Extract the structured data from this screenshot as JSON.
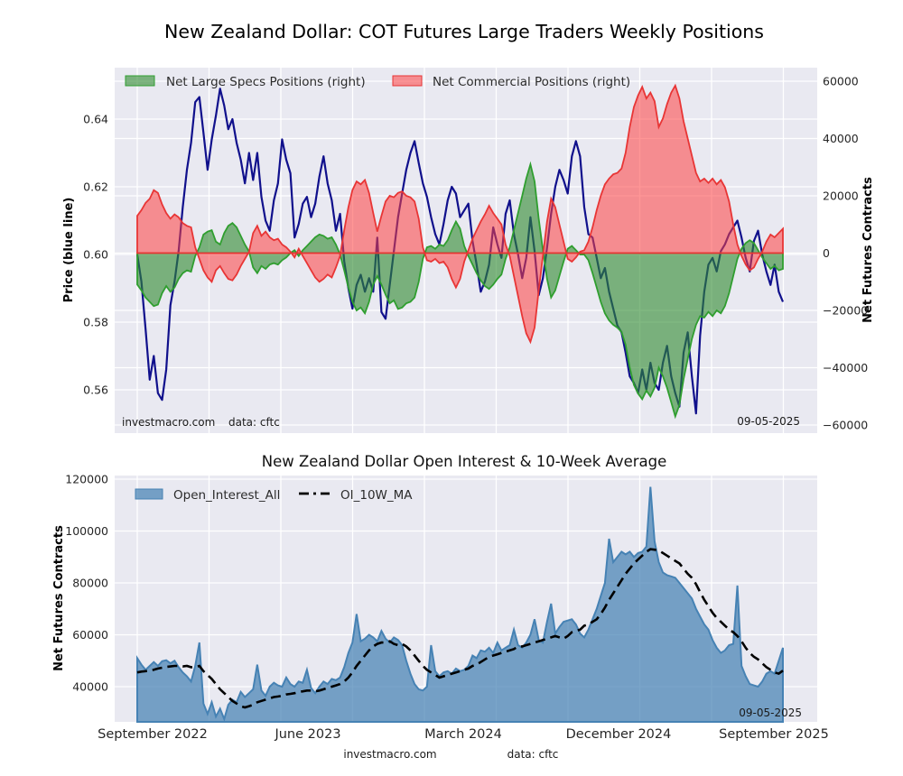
{
  "figure": {
    "title": "New Zealand Dollar: COT Futures Large Traders Weekly Positions",
    "watermark": "investmacro.com",
    "source_note": "data: cftc",
    "date_note": "09-05-2025"
  },
  "colors": {
    "panel_bg": "#e9e9f1",
    "grid": "#ffffff",
    "price_line": "#10108c",
    "specs_fill": "rgba(46,139,46,0.6)",
    "specs_edge": "#2f9e2f",
    "commercial_fill": "rgba(255,64,64,0.55)",
    "commercial_edge": "#e83535",
    "oi_fill": "rgba(70,130,180,0.72)",
    "oi_edge": "#4682b4",
    "ma_line": "#000000"
  },
  "chart_data": [
    {
      "type": "area",
      "title": "New Zealand Dollar: COT Futures Large Traders Weekly Positions",
      "legend": [
        "Net Large Specs Positions (right)",
        "Net Commercial Positions (right)"
      ],
      "ylabel_left": "Price (blue line)",
      "ylabel_right": "Net Futures Contracts",
      "yticks_left": [
        0.64,
        0.62,
        0.6,
        0.58,
        0.56
      ],
      "yticks_right": [
        60000,
        40000,
        20000,
        0,
        -20000,
        -40000,
        -60000
      ],
      "ylim_left": [
        0.546,
        0.655
      ],
      "ylim_right": [
        -63000,
        64500
      ],
      "x_range": [
        "mid-August 2022",
        "September 2025"
      ],
      "grid": true,
      "legend_position": "upper-left-inside",
      "annotations": [
        "investmacro.com",
        "data: cftc",
        "09-05-2025"
      ],
      "series": [
        {
          "name": "Price",
          "axis": "left",
          "style": "line",
          "values": [
            0.6,
            0.592,
            0.578,
            0.563,
            0.57,
            0.559,
            0.557,
            0.566,
            0.585,
            0.592,
            0.601,
            0.614,
            0.625,
            0.633,
            0.645,
            0.6465,
            0.636,
            0.625,
            0.634,
            0.641,
            0.649,
            0.644,
            0.637,
            0.64,
            0.633,
            0.628,
            0.621,
            0.63,
            0.622,
            0.63,
            0.617,
            0.61,
            0.607,
            0.616,
            0.621,
            0.634,
            0.628,
            0.624,
            0.605,
            0.609,
            0.615,
            0.617,
            0.611,
            0.615,
            0.623,
            0.629,
            0.621,
            0.616,
            0.607,
            0.612,
            0.598,
            0.59,
            0.584,
            0.591,
            0.594,
            0.589,
            0.593,
            0.589,
            0.605,
            0.583,
            0.581,
            0.591,
            0.601,
            0.611,
            0.618,
            0.625,
            0.63,
            0.6335,
            0.627,
            0.621,
            0.617,
            0.611,
            0.606,
            0.603,
            0.609,
            0.616,
            0.62,
            0.618,
            0.611,
            0.613,
            0.615,
            0.604,
            0.597,
            0.589,
            0.592,
            0.597,
            0.608,
            0.603,
            0.599,
            0.612,
            0.616,
            0.606,
            0.6,
            0.593,
            0.599,
            0.611,
            0.601,
            0.588,
            0.593,
            0.602,
            0.612,
            0.62,
            0.625,
            0.622,
            0.618,
            0.629,
            0.6335,
            0.629,
            0.614,
            0.606,
            0.605,
            0.599,
            0.593,
            0.596,
            0.589,
            0.584,
            0.579,
            0.577,
            0.571,
            0.564,
            0.562,
            0.559,
            0.566,
            0.56,
            0.568,
            0.562,
            0.56,
            0.568,
            0.573,
            0.564,
            0.559,
            0.555,
            0.571,
            0.577,
            0.564,
            0.553,
            0.576,
            0.589,
            0.597,
            0.599,
            0.595,
            0.601,
            0.603,
            0.606,
            0.608,
            0.61,
            0.605,
            0.599,
            0.595,
            0.604,
            0.607,
            0.6,
            0.595,
            0.591,
            0.597,
            0.589,
            0.586
          ]
        },
        {
          "name": "Net Large Specs Positions",
          "axis": "right",
          "style": "area",
          "values": [
            -11000,
            -13000,
            -15500,
            -17000,
            -18500,
            -18000,
            -14000,
            -11500,
            -13500,
            -12000,
            -9000,
            -7000,
            -6000,
            -6500,
            -1000,
            2000,
            6500,
            7500,
            8000,
            4000,
            3000,
            7000,
            9500,
            10500,
            9000,
            6000,
            3000,
            500,
            -5000,
            -7000,
            -4500,
            -5500,
            -4000,
            -3500,
            -4000,
            -2500,
            -1500,
            0,
            1000,
            -1000,
            1000,
            2500,
            4000,
            5500,
            6500,
            6000,
            5000,
            5500,
            3000,
            -500,
            -6000,
            -12000,
            -17000,
            -20000,
            -19000,
            -21000,
            -17000,
            -11000,
            -8000,
            -11000,
            -14500,
            -17500,
            -16500,
            -19500,
            -19000,
            -17500,
            -17000,
            -15500,
            -10000,
            -2000,
            2000,
            2500,
            1500,
            3000,
            2500,
            4500,
            8000,
            11000,
            8500,
            2500,
            -1000,
            -4000,
            -7000,
            -9500,
            -11500,
            -12500,
            -11000,
            -9000,
            -7500,
            -2000,
            2000,
            8000,
            14000,
            20000,
            26000,
            31000,
            25000,
            12000,
            1000,
            -9000,
            -15500,
            -13000,
            -8000,
            -3000,
            1500,
            2500,
            1000,
            -500,
            -500,
            -2500,
            -7000,
            -12000,
            -17000,
            -21000,
            -23500,
            -25000,
            -26000,
            -27500,
            -32000,
            -40000,
            -46000,
            -49000,
            -51000,
            -48000,
            -50000,
            -47000,
            -40000,
            -43000,
            -47000,
            -52000,
            -57000,
            -53000,
            -44000,
            -37000,
            -30000,
            -25000,
            -22000,
            -22500,
            -20500,
            -22000,
            -20000,
            -21000,
            -18500,
            -14000,
            -8000,
            -2000,
            1500,
            3500,
            4500,
            3500,
            1000,
            -1500,
            -3500,
            -5500,
            -4500,
            -6000,
            -5500
          ]
        },
        {
          "name": "Net Commercial Positions",
          "axis": "right",
          "style": "area",
          "values": [
            13000,
            15000,
            17500,
            19000,
            22000,
            21000,
            17000,
            14000,
            12000,
            13500,
            12500,
            10500,
            9500,
            9000,
            2000,
            -2000,
            -6000,
            -8500,
            -10000,
            -6000,
            -4500,
            -7000,
            -9000,
            -9500,
            -7500,
            -4500,
            -2000,
            500,
            7000,
            9500,
            6000,
            7500,
            5500,
            4500,
            5000,
            3000,
            2000,
            500,
            -1500,
            1500,
            -1000,
            -3500,
            -6000,
            -8500,
            -10000,
            -9000,
            -7500,
            -8500,
            -5000,
            -1000,
            8000,
            16000,
            22000,
            25000,
            24000,
            25500,
            21000,
            14000,
            7500,
            13000,
            18000,
            20000,
            19500,
            21000,
            21500,
            20000,
            19500,
            18000,
            12000,
            2000,
            -2500,
            -3000,
            -2000,
            -3500,
            -3000,
            -5000,
            -9000,
            -12000,
            -9000,
            -3000,
            1000,
            5000,
            8000,
            11000,
            13500,
            16500,
            14000,
            12000,
            10000,
            3000,
            -1000,
            -8000,
            -15000,
            -22000,
            -28000,
            -31000,
            -26000,
            -13000,
            -1000,
            11000,
            19000,
            16000,
            10000,
            4000,
            -2000,
            -3000,
            -1500,
            500,
            1000,
            4000,
            9000,
            15000,
            20000,
            24000,
            26000,
            27500,
            28000,
            29500,
            35000,
            44000,
            51000,
            55000,
            58000,
            54000,
            56000,
            53000,
            44000,
            47000,
            52000,
            56000,
            58500,
            54000,
            46000,
            40000,
            34000,
            28000,
            25000,
            26000,
            24500,
            26000,
            24000,
            25500,
            23000,
            18000,
            10000,
            3000,
            -1000,
            -4000,
            -6000,
            -5000,
            -2000,
            500,
            4000,
            6500,
            5500,
            7000,
            8500
          ]
        }
      ]
    },
    {
      "type": "area",
      "title": "New Zealand Dollar Open Interest & 10-Week Average",
      "legend": [
        "Open_Interest_All",
        "OI_10W_MA"
      ],
      "ylabel": "Net Futures Contracts",
      "yticks": [
        120000,
        100000,
        80000,
        60000,
        40000
      ],
      "ylim": [
        26000,
        122000
      ],
      "xticklabels": [
        "September 2022",
        "June 2023",
        "March 2024",
        "December 2024",
        "September 2025"
      ],
      "grid": true,
      "legend_position": "upper-left-inside",
      "annotations": [
        "09-05-2025",
        "investmacro.com",
        "data: cftc"
      ],
      "series": [
        {
          "name": "Open_Interest_All",
          "style": "area",
          "values": [
            51000,
            48500,
            46500,
            48000,
            49500,
            48000,
            49800,
            50200,
            49000,
            50000,
            47500,
            45500,
            44000,
            42000,
            48000,
            57000,
            33500,
            29500,
            34000,
            28500,
            31500,
            27500,
            33000,
            35000,
            34000,
            38000,
            36000,
            37500,
            39000,
            48500,
            38500,
            36500,
            40000,
            41500,
            40500,
            40000,
            43500,
            41000,
            40000,
            42000,
            41500,
            46500,
            39500,
            37500,
            40000,
            42000,
            41000,
            43000,
            42500,
            43500,
            47500,
            53000,
            57000,
            68000,
            57500,
            58500,
            60000,
            59000,
            57500,
            61500,
            58500,
            57000,
            59000,
            58000,
            56000,
            50000,
            45000,
            41000,
            39000,
            38500,
            40000,
            56000,
            46000,
            44000,
            45500,
            46000,
            45000,
            47000,
            46000,
            46500,
            48000,
            52000,
            51000,
            54000,
            53500,
            55000,
            53000,
            57000,
            54000,
            55000,
            56000,
            62000,
            56000,
            55000,
            57000,
            60000,
            66000,
            58000,
            57000,
            65000,
            72000,
            60500,
            63000,
            65000,
            65500,
            66000,
            64000,
            60500,
            59000,
            62000,
            66000,
            70000,
            75000,
            80000,
            97000,
            88000,
            90000,
            92000,
            91000,
            92000,
            90000,
            91500,
            92000,
            94000,
            117000,
            96000,
            88000,
            84000,
            83000,
            82500,
            82000,
            80000,
            78000,
            76000,
            74000,
            70000,
            67000,
            64000,
            62000,
            58000,
            55000,
            53000,
            54000,
            56000,
            56500,
            79000,
            48000,
            44000,
            41000,
            40500,
            40000,
            42000,
            45000,
            46000,
            45000,
            50000,
            55000
          ]
        },
        {
          "name": "OI_10W_MA",
          "style": "dashed-line",
          "values": [
            45500,
            45800,
            46000,
            46200,
            46500,
            47000,
            47300,
            47600,
            47800,
            48000,
            48000,
            47800,
            48000,
            47500,
            47500,
            48000,
            46000,
            44500,
            43000,
            41000,
            39000,
            37500,
            36000,
            34500,
            33500,
            32500,
            32000,
            32500,
            33000,
            34000,
            34500,
            35000,
            35500,
            36000,
            36200,
            36500,
            37000,
            37200,
            37500,
            38000,
            38200,
            38500,
            38500,
            38200,
            38500,
            39000,
            39500,
            40000,
            40500,
            41000,
            42000,
            43500,
            45500,
            48000,
            50000,
            52000,
            54000,
            55500,
            56500,
            57000,
            57000,
            57500,
            56500,
            56000,
            56500,
            55500,
            54000,
            52000,
            50000,
            48000,
            46500,
            45500,
            44500,
            43500,
            44000,
            44500,
            45000,
            45500,
            46000,
            46500,
            47000,
            48000,
            48500,
            49500,
            50500,
            51500,
            52000,
            52500,
            53000,
            53500,
            54000,
            54500,
            55500,
            55500,
            56000,
            56500,
            57000,
            57500,
            58000,
            58500,
            59000,
            59500,
            59000,
            58500,
            59500,
            61000,
            61500,
            62000,
            63500,
            64000,
            65000,
            66000,
            68000,
            70500,
            73500,
            76000,
            78500,
            81000,
            83500,
            85500,
            87500,
            89000,
            90500,
            92000,
            93000,
            92800,
            92500,
            91500,
            90500,
            89500,
            88500,
            87500,
            85500,
            83500,
            82000,
            79500,
            76500,
            73500,
            71000,
            68500,
            66500,
            65000,
            63500,
            62000,
            61000,
            59500,
            57500,
            55000,
            53000,
            51500,
            50500,
            49000,
            47500,
            46500,
            45500,
            45000,
            46200
          ]
        }
      ]
    }
  ]
}
